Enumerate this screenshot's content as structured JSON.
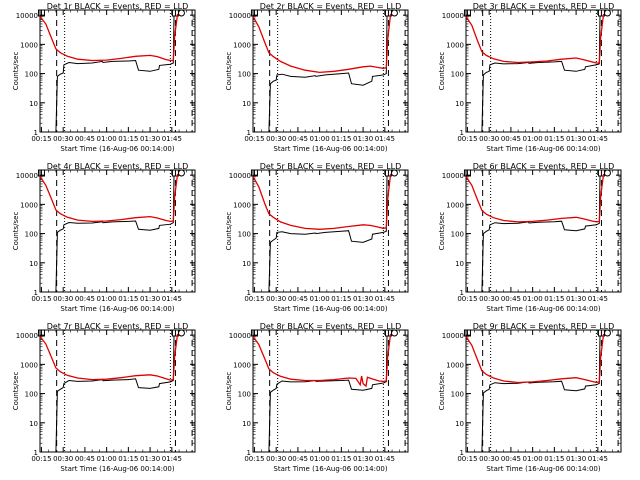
{
  "x_ticks": [
    "00:15",
    "00:30",
    "00:45",
    "01:00",
    "01:15",
    "01:30",
    "01:45"
  ],
  "y_ticks": [
    "1",
    "10",
    "100",
    "1000",
    "10000"
  ],
  "xlabel": "Start Time (16-Aug-06 00:14:00)",
  "ylabel": "Counts/sec",
  "colors": {
    "events": "#000000",
    "lld": "#e00000",
    "axes": "#000000",
    "background": "#ffffff"
  },
  "chart_data": [
    {
      "type": "line",
      "title": "Det 1r BLACK = Events, RED = LLD",
      "xlabel": "Start Time (16-Aug-06 00:14:00)",
      "ylabel": "Counts/sec",
      "x_range_min": [
        14,
        121
      ],
      "ylim": [
        1,
        15000
      ],
      "y_scale": "log",
      "dashed_lines_min": [
        25.5,
        107.5,
        119
      ],
      "dotted_lines_min": [
        31,
        104
      ],
      "markers_min": [
        15,
        107.5
      ],
      "series": [
        {
          "x_min": [
            14,
            18,
            22,
            25,
            28,
            33,
            40,
            50,
            60,
            70,
            80,
            90,
            95,
            101,
            104,
            106,
            107,
            109
          ],
          "values": [
            9000,
            5000,
            1600,
            700,
            520,
            390,
            310,
            280,
            290,
            330,
            390,
            420,
            380,
            300,
            280,
            280,
            2000,
            11000
          ]
        },
        {
          "x_min": [
            25,
            26,
            28,
            30,
            30.5,
            34,
            40,
            50,
            57,
            57.5,
            64,
            75,
            80,
            82,
            90,
            96,
            96.5,
            104,
            106,
            106.5
          ],
          "values": [
            1,
            80,
            95,
            105,
            200,
            240,
            220,
            230,
            260,
            240,
            260,
            270,
            280,
            130,
            120,
            140,
            190,
            210,
            230,
            9000
          ]
        }
      ]
    },
    {
      "type": "line",
      "title": "Det 2r BLACK = Events, RED = LLD",
      "xlabel": "Start Time (16-Aug-06 00:14:00)",
      "ylabel": "Counts/sec",
      "x_range_min": [
        14,
        121
      ],
      "ylim": [
        1,
        15000
      ],
      "y_scale": "log",
      "dashed_lines_min": [
        25.5,
        107.5,
        119
      ],
      "dotted_lines_min": [
        31,
        104
      ],
      "markers_min": [
        15,
        107.5
      ],
      "series": [
        {
          "x_min": [
            14,
            18,
            22,
            25,
            28,
            33,
            40,
            50,
            60,
            70,
            80,
            90,
            95,
            101,
            104,
            106,
            107,
            109
          ],
          "values": [
            9000,
            4000,
            1200,
            520,
            380,
            260,
            180,
            130,
            110,
            120,
            140,
            170,
            180,
            160,
            150,
            160,
            1500,
            11000
          ]
        },
        {
          "x_min": [
            25,
            26,
            28,
            30,
            30.5,
            34,
            40,
            50,
            57,
            57.5,
            64,
            75,
            80,
            82,
            90,
            96,
            96.5,
            104,
            106,
            106.5
          ],
          "values": [
            1,
            45,
            55,
            60,
            90,
            95,
            80,
            75,
            85,
            80,
            90,
            100,
            105,
            45,
            40,
            55,
            80,
            90,
            100,
            9000
          ]
        }
      ]
    },
    {
      "type": "line",
      "title": "Det 3r BLACK = Events, RED = LLD",
      "xlabel": "Start Time (16-Aug-06 00:14:00)",
      "ylabel": "Counts/sec",
      "x_range_min": [
        14,
        121
      ],
      "ylim": [
        1,
        15000
      ],
      "y_scale": "log",
      "dashed_lines_min": [
        25.5,
        107.5,
        119
      ],
      "dotted_lines_min": [
        31,
        104
      ],
      "markers_min": [
        15,
        107.5
      ],
      "series": [
        {
          "x_min": [
            14,
            18,
            22,
            25,
            28,
            33,
            40,
            50,
            60,
            70,
            80,
            90,
            95,
            101,
            104,
            106,
            107,
            109
          ],
          "values": [
            9000,
            4500,
            1300,
            560,
            420,
            320,
            260,
            240,
            250,
            270,
            310,
            340,
            300,
            250,
            230,
            230,
            1800,
            11000
          ]
        },
        {
          "x_min": [
            25,
            26,
            28,
            30,
            30.5,
            34,
            40,
            50,
            57,
            57.5,
            64,
            75,
            80,
            82,
            90,
            96,
            96.5,
            104,
            106,
            106.5
          ],
          "values": [
            1,
            90,
            110,
            120,
            200,
            230,
            215,
            220,
            240,
            225,
            240,
            250,
            260,
            130,
            120,
            140,
            170,
            200,
            215,
            9000
          ]
        }
      ]
    },
    {
      "type": "line",
      "title": "Det 4r BLACK = Events, RED = LLD",
      "xlabel": "Start Time (16-Aug-06 00:14:00)",
      "ylabel": "Counts/sec",
      "x_range_min": [
        14,
        121
      ],
      "ylim": [
        1,
        15000
      ],
      "y_scale": "log",
      "dashed_lines_min": [
        25.5,
        107.5,
        119
      ],
      "dotted_lines_min": [
        31,
        104
      ],
      "markers_min": [
        15,
        107.5
      ],
      "series": [
        {
          "x_min": [
            14,
            18,
            22,
            25,
            28,
            33,
            40,
            50,
            60,
            70,
            80,
            90,
            95,
            101,
            104,
            106,
            107,
            109
          ],
          "values": [
            9000,
            4500,
            1500,
            640,
            480,
            360,
            290,
            260,
            270,
            300,
            350,
            380,
            340,
            280,
            260,
            270,
            1900,
            11000
          ]
        },
        {
          "x_min": [
            25,
            26,
            28,
            30,
            30.5,
            34,
            40,
            50,
            57,
            57.5,
            64,
            75,
            80,
            82,
            90,
            96,
            96.5,
            104,
            106,
            106.5
          ],
          "values": [
            1,
            110,
            130,
            145,
            200,
            240,
            225,
            230,
            255,
            235,
            250,
            260,
            270,
            140,
            130,
            150,
            190,
            210,
            235,
            9000
          ]
        }
      ]
    },
    {
      "type": "line",
      "title": "Det 5r BLACK = Events, RED = LLD",
      "xlabel": "Start Time (16-Aug-06 00:14:00)",
      "ylabel": "Counts/sec",
      "x_range_min": [
        14,
        121
      ],
      "ylim": [
        1,
        15000
      ],
      "y_scale": "log",
      "dashed_lines_min": [
        25.5,
        107.5,
        119
      ],
      "dotted_lines_min": [
        31,
        104
      ],
      "markers_min": [
        15,
        107.5
      ],
      "series": [
        {
          "x_min": [
            14,
            18,
            22,
            25,
            28,
            33,
            40,
            50,
            60,
            70,
            80,
            90,
            95,
            101,
            104,
            106,
            107,
            109
          ],
          "values": [
            9000,
            4000,
            1100,
            480,
            360,
            250,
            190,
            150,
            140,
            150,
            175,
            200,
            190,
            165,
            150,
            160,
            1500,
            11000
          ]
        },
        {
          "x_min": [
            25,
            26,
            28,
            30,
            30.5,
            34,
            40,
            50,
            57,
            57.5,
            64,
            75,
            80,
            82,
            90,
            96,
            96.5,
            104,
            106,
            106.5
          ],
          "values": [
            1,
            50,
            60,
            70,
            110,
            115,
            100,
            95,
            105,
            100,
            110,
            120,
            125,
            55,
            50,
            65,
            95,
            110,
            120,
            9000
          ]
        }
      ]
    },
    {
      "type": "line",
      "title": "Det 6r BLACK = Events, RED = LLD",
      "xlabel": "Start Time (16-Aug-06 00:14:00)",
      "ylabel": "Counts/sec",
      "x_range_min": [
        14,
        121
      ],
      "ylim": [
        1,
        15000
      ],
      "y_scale": "log",
      "dashed_lines_min": [
        25.5,
        107.5,
        119
      ],
      "dotted_lines_min": [
        31,
        104
      ],
      "markers_min": [
        15,
        107.5
      ],
      "series": [
        {
          "x_min": [
            14,
            18,
            22,
            25,
            28,
            33,
            40,
            50,
            60,
            70,
            80,
            90,
            95,
            101,
            104,
            106,
            107,
            109
          ],
          "values": [
            9000,
            4500,
            1400,
            620,
            460,
            350,
            280,
            250,
            260,
            290,
            330,
            360,
            320,
            270,
            250,
            260,
            1900,
            11000
          ]
        },
        {
          "x_min": [
            25,
            26,
            28,
            30,
            30.5,
            34,
            40,
            50,
            57,
            57.5,
            64,
            75,
            80,
            82,
            90,
            96,
            96.5,
            104,
            106,
            106.5
          ],
          "values": [
            1,
            100,
            120,
            135,
            200,
            235,
            220,
            225,
            250,
            230,
            245,
            255,
            265,
            135,
            125,
            145,
            180,
            200,
            225,
            9000
          ]
        }
      ]
    },
    {
      "type": "line",
      "title": "Det 7r BLACK = Events, RED = LLD",
      "xlabel": "Start Time (16-Aug-06 00:14:00)",
      "ylabel": "Counts/sec",
      "x_range_min": [
        14,
        121
      ],
      "ylim": [
        1,
        15000
      ],
      "y_scale": "log",
      "dashed_lines_min": [
        25.5,
        107.5,
        119
      ],
      "dotted_lines_min": [
        31,
        104
      ],
      "markers_min": [
        15,
        107.5
      ],
      "series": [
        {
          "x_min": [
            14,
            18,
            22,
            25,
            28,
            33,
            40,
            50,
            60,
            70,
            80,
            90,
            95,
            101,
            104,
            106,
            107,
            109
          ],
          "values": [
            9000,
            5000,
            1700,
            750,
            560,
            420,
            340,
            300,
            310,
            350,
            410,
            440,
            400,
            320,
            290,
            300,
            2000,
            11000
          ]
        },
        {
          "x_min": [
            25,
            26,
            28,
            30,
            30.5,
            34,
            40,
            50,
            57,
            57.5,
            64,
            75,
            80,
            82,
            90,
            96,
            96.5,
            104,
            106,
            106.5
          ],
          "values": [
            1,
            120,
            140,
            160,
            220,
            280,
            260,
            270,
            300,
            275,
            290,
            300,
            320,
            160,
            150,
            170,
            220,
            250,
            280,
            9000
          ]
        }
      ]
    },
    {
      "type": "line",
      "title": "Det 8r BLACK = Events, RED = LLD",
      "xlabel": "Start Time (16-Aug-06 00:14:00)",
      "ylabel": "Counts/sec",
      "x_range_min": [
        14,
        121
      ],
      "ylim": [
        1,
        15000
      ],
      "y_scale": "log",
      "dashed_lines_min": [
        25.5,
        107.5,
        119
      ],
      "dotted_lines_min": [
        31,
        104
      ],
      "markers_min": [
        15,
        107.5
      ],
      "series": [
        {
          "x_min": [
            14,
            18,
            22,
            25,
            28,
            33,
            40,
            50,
            60,
            70,
            80,
            85,
            88,
            89,
            90,
            92,
            93,
            96,
            101,
            104,
            106,
            107,
            109
          ],
          "values": [
            9000,
            4800,
            1600,
            700,
            520,
            390,
            310,
            280,
            280,
            300,
            340,
            330,
            200,
            400,
            220,
            180,
            360,
            320,
            270,
            260,
            270,
            1900,
            11000
          ]
        },
        {
          "x_min": [
            25,
            26,
            28,
            30,
            30.5,
            34,
            40,
            50,
            57,
            57.5,
            64,
            75,
            80,
            82,
            90,
            96,
            96.5,
            104,
            106,
            106.5
          ],
          "values": [
            1,
            110,
            130,
            150,
            210,
            270,
            250,
            255,
            280,
            260,
            270,
            280,
            290,
            140,
            130,
            150,
            200,
            230,
            255,
            9000
          ]
        }
      ]
    },
    {
      "type": "line",
      "title": "Det 9r BLACK = Events, RED = LLD",
      "xlabel": "Start Time (16-Aug-06 00:14:00)",
      "ylabel": "Counts/sec",
      "x_range_min": [
        14,
        121
      ],
      "ylim": [
        1,
        15000
      ],
      "y_scale": "log",
      "dashed_lines_min": [
        25.5,
        107.5,
        119
      ],
      "dotted_lines_min": [
        31,
        104
      ],
      "markers_min": [
        15,
        107.5
      ],
      "series": [
        {
          "x_min": [
            14,
            18,
            22,
            25,
            28,
            33,
            40,
            50,
            60,
            70,
            80,
            90,
            95,
            101,
            104,
            106,
            107,
            109
          ],
          "values": [
            9000,
            4500,
            1400,
            600,
            450,
            340,
            270,
            240,
            250,
            280,
            320,
            350,
            310,
            260,
            240,
            250,
            1800,
            11000
          ]
        },
        {
          "x_min": [
            25,
            26,
            28,
            30,
            30.5,
            34,
            40,
            50,
            57,
            57.5,
            64,
            75,
            80,
            82,
            90,
            96,
            96.5,
            104,
            106,
            106.5
          ],
          "values": [
            1,
            105,
            125,
            140,
            200,
            235,
            220,
            225,
            250,
            230,
            245,
            255,
            265,
            135,
            125,
            145,
            180,
            200,
            225,
            9000
          ]
        }
      ]
    }
  ]
}
